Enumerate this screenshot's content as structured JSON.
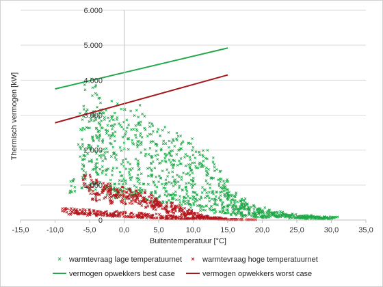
{
  "chart_data": {
    "type": "scatter",
    "xlabel": "Buitentemperatuur [°C]",
    "ylabel": "Thermisch vermogen [kW]",
    "xlim": [
      -15,
      35
    ],
    "ylim": [
      0,
      6000
    ],
    "x_ticks": [
      "-15,0",
      "-10,0",
      "-5,0",
      "0,0",
      "5,0",
      "10,0",
      "15,0",
      "20,0",
      "25,0",
      "30,0",
      "35,0"
    ],
    "y_ticks": [
      "0",
      "1.000",
      "2.000",
      "3.000",
      "4.000",
      "5.000",
      "6.000"
    ],
    "grid": "horizontal",
    "legend_position": "bottom",
    "series": [
      {
        "name": "warmtevraag lage temperatuurnet",
        "kind": "scatter",
        "marker": "x",
        "color": "#22a84a",
        "points": [
          [
            -5.0,
            3300
          ],
          [
            -4.0,
            3100
          ],
          [
            -3.5,
            2900
          ],
          [
            -3.0,
            2700
          ],
          [
            -2.0,
            2500
          ],
          [
            -1.0,
            2900
          ],
          [
            -5.5,
            2600
          ],
          [
            -5.0,
            2200
          ],
          [
            -4.0,
            2000
          ],
          [
            -2.0,
            2200
          ],
          [
            0.0,
            2400
          ],
          [
            1.0,
            2600
          ],
          [
            2.0,
            2700
          ],
          [
            3.0,
            2500
          ],
          [
            4.0,
            2300
          ],
          [
            5.0,
            2200
          ],
          [
            6.0,
            2100
          ],
          [
            7.0,
            2000
          ],
          [
            8.0,
            2050
          ],
          [
            9.0,
            1900
          ],
          [
            10.0,
            1700
          ],
          [
            11.0,
            1650
          ],
          [
            12.0,
            1500
          ],
          [
            13.0,
            1250
          ],
          [
            14.0,
            1000
          ],
          [
            15.0,
            800
          ],
          [
            16.0,
            650
          ],
          [
            17.0,
            520
          ],
          [
            18.0,
            420
          ],
          [
            20.0,
            300
          ],
          [
            22.0,
            200
          ],
          [
            24.0,
            150
          ],
          [
            26.0,
            110
          ],
          [
            28.0,
            90
          ],
          [
            30.0,
            80
          ],
          [
            -6.0,
            1800
          ],
          [
            -5.0,
            1500
          ],
          [
            -3.0,
            1600
          ],
          [
            -1.0,
            1700
          ],
          [
            1.0,
            1500
          ],
          [
            3.0,
            1600
          ],
          [
            5.0,
            1550
          ],
          [
            7.0,
            1400
          ],
          [
            9.0,
            1200
          ],
          [
            11.0,
            1000
          ],
          [
            13.0,
            800
          ],
          [
            15.0,
            600
          ],
          [
            17.0,
            380
          ],
          [
            19.0,
            260
          ],
          [
            21.0,
            180
          ],
          [
            23.0,
            130
          ],
          [
            25.0,
            100
          ],
          [
            27.0,
            80
          ],
          [
            29.0,
            60
          ],
          [
            -7.0,
            1000
          ],
          [
            -5.0,
            1100
          ],
          [
            -3.0,
            1200
          ],
          [
            -1.0,
            1050
          ],
          [
            1.0,
            1000
          ],
          [
            3.0,
            1100
          ],
          [
            5.0,
            1000
          ],
          [
            7.0,
            900
          ],
          [
            9.0,
            800
          ],
          [
            11.0,
            650
          ],
          [
            13.0,
            500
          ],
          [
            15.0,
            380
          ],
          [
            17.0,
            270
          ],
          [
            19.0,
            190
          ],
          [
            21.0,
            120
          ],
          [
            23.0,
            90
          ],
          [
            25.0,
            60
          ],
          [
            27.0,
            50
          ],
          [
            29.0,
            40
          ],
          [
            -2.0,
            800
          ],
          [
            0.0,
            750
          ],
          [
            2.0,
            700
          ],
          [
            4.0,
            650
          ],
          [
            6.0,
            600
          ],
          [
            8.0,
            550
          ],
          [
            10.0,
            450
          ],
          [
            12.0,
            350
          ],
          [
            14.0,
            250
          ],
          [
            16.0,
            180
          ],
          [
            18.0,
            120
          ],
          [
            20.0,
            80
          ]
        ]
      },
      {
        "name": "warmtevraag hoge temperatuurnet",
        "kind": "scatter",
        "marker": "x",
        "color": "#b5161b",
        "points": [
          [
            -5.0,
            1050
          ],
          [
            -4.0,
            950
          ],
          [
            -3.0,
            900
          ],
          [
            -2.0,
            850
          ],
          [
            -1.0,
            800
          ],
          [
            0.0,
            750
          ],
          [
            1.0,
            700
          ],
          [
            2.0,
            650
          ],
          [
            3.0,
            600
          ],
          [
            4.0,
            550
          ],
          [
            5.0,
            480
          ],
          [
            6.0,
            420
          ],
          [
            7.0,
            360
          ],
          [
            8.0,
            300
          ],
          [
            9.0,
            240
          ],
          [
            10.0,
            180
          ],
          [
            11.0,
            130
          ],
          [
            12.0,
            90
          ],
          [
            13.0,
            60
          ],
          [
            14.0,
            40
          ],
          [
            16.0,
            20
          ],
          [
            18.0,
            10
          ],
          [
            -4.0,
            700
          ],
          [
            -3.0,
            650
          ],
          [
            -1.0,
            600
          ],
          [
            1.0,
            550
          ],
          [
            3.0,
            450
          ],
          [
            5.0,
            350
          ],
          [
            7.0,
            250
          ],
          [
            9.0,
            150
          ],
          [
            11.0,
            80
          ],
          [
            -8.0,
            280
          ],
          [
            -6.0,
            250
          ],
          [
            -4.0,
            230
          ],
          [
            -2.0,
            210
          ],
          [
            0.0,
            190
          ],
          [
            2.0,
            170
          ],
          [
            4.0,
            140
          ],
          [
            6.0,
            110
          ],
          [
            8.0,
            80
          ],
          [
            10.0,
            50
          ],
          [
            12.0,
            30
          ],
          [
            14.0,
            20
          ],
          [
            16.0,
            10
          ],
          [
            -7.0,
            180
          ],
          [
            -5.0,
            160
          ],
          [
            -3.0,
            140
          ],
          [
            -1.0,
            120
          ],
          [
            1.0,
            100
          ],
          [
            3.0,
            80
          ],
          [
            5.0,
            60
          ],
          [
            7.0,
            40
          ],
          [
            9.0,
            25
          ]
        ]
      },
      {
        "name": "vermogen opwekkers best case",
        "kind": "line",
        "color": "#22a84a",
        "points": [
          [
            -10,
            3750
          ],
          [
            15,
            4920
          ]
        ]
      },
      {
        "name": "vermogen opwekkers worst case",
        "kind": "line",
        "color": "#a3191c",
        "points": [
          [
            -10,
            2780
          ],
          [
            15,
            4150
          ]
        ]
      }
    ]
  }
}
